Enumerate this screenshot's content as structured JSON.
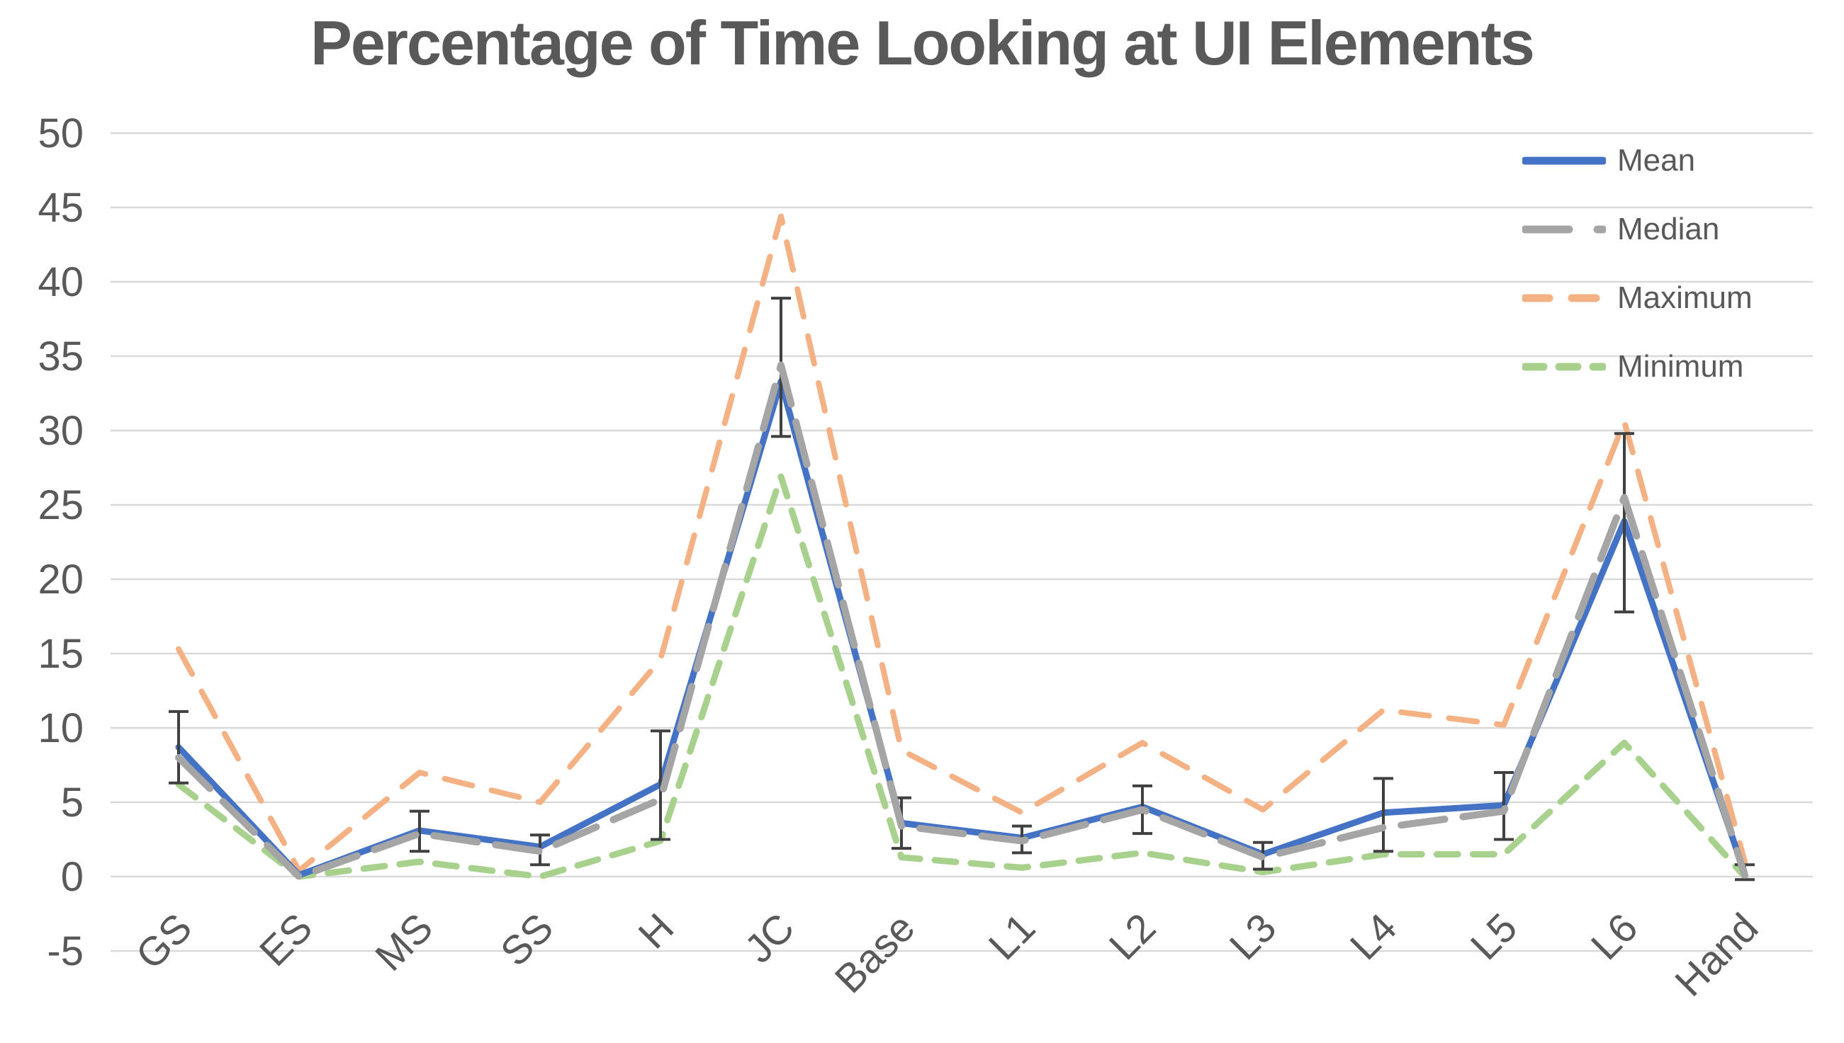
{
  "chart_data": {
    "type": "line",
    "title": "Percentage of Time Looking at UI Elements",
    "categories": [
      "GS",
      "ES",
      "MS",
      "SS",
      "H",
      "JC",
      "Base",
      "L1",
      "L2",
      "L3",
      "L4",
      "L5",
      "L6",
      "Hand"
    ],
    "series": [
      {
        "key": "mean",
        "name": "Mean",
        "color": "#4472C4",
        "dash": "solid",
        "values": [
          8.7,
          0.1,
          3.1,
          2.0,
          6.2,
          33.3,
          3.6,
          2.6,
          4.7,
          1.5,
          4.3,
          4.8,
          23.9,
          0.2
        ]
      },
      {
        "key": "median",
        "name": "Median",
        "color": "#A5A5A5",
        "dash": "long-dash",
        "values": [
          8.0,
          0.0,
          2.9,
          1.7,
          5.2,
          34.4,
          3.4,
          2.4,
          4.5,
          1.3,
          3.3,
          4.4,
          25.5,
          0.1
        ]
      },
      {
        "key": "maximum",
        "name": "Maximum",
        "color": "#F4B183",
        "dash": "dash",
        "values": [
          15.3,
          0.4,
          7.0,
          5.0,
          14.6,
          44.4,
          8.5,
          4.3,
          9.0,
          4.5,
          11.2,
          10.2,
          30.6,
          1.0
        ]
      },
      {
        "key": "minimum",
        "name": "Minimum",
        "color": "#A9D18E",
        "dash": "short-dash",
        "values": [
          6.2,
          0.0,
          1.0,
          0.0,
          2.4,
          26.9,
          1.3,
          0.6,
          1.6,
          0.3,
          1.5,
          1.5,
          9.0,
          0.0
        ]
      }
    ],
    "error_bars": {
      "attached_to": "Mean",
      "low": [
        6.3,
        null,
        1.7,
        0.8,
        2.5,
        29.6,
        1.9,
        1.6,
        2.9,
        0.5,
        1.7,
        2.5,
        17.8,
        -0.2
      ],
      "high": [
        11.1,
        null,
        4.4,
        2.8,
        9.8,
        38.9,
        5.3,
        3.4,
        6.1,
        2.3,
        6.6,
        7.0,
        29.8,
        0.8
      ]
    },
    "y_axis": {
      "ticks": [
        50,
        45,
        40,
        35,
        30,
        25,
        20,
        15,
        10,
        5,
        0,
        -5
      ],
      "min": -5,
      "max": 50,
      "gridlines": true
    },
    "legend": {
      "position": "top-right",
      "items": [
        {
          "label": "Mean"
        },
        {
          "label": "Median"
        },
        {
          "label": "Maximum"
        },
        {
          "label": "Minimum"
        }
      ]
    },
    "colors": {
      "title_text": "#595959",
      "axis_text": "#595959",
      "gridline": "#D9D9D9",
      "error_bar": "#404040",
      "background": "#FFFFFF"
    }
  }
}
